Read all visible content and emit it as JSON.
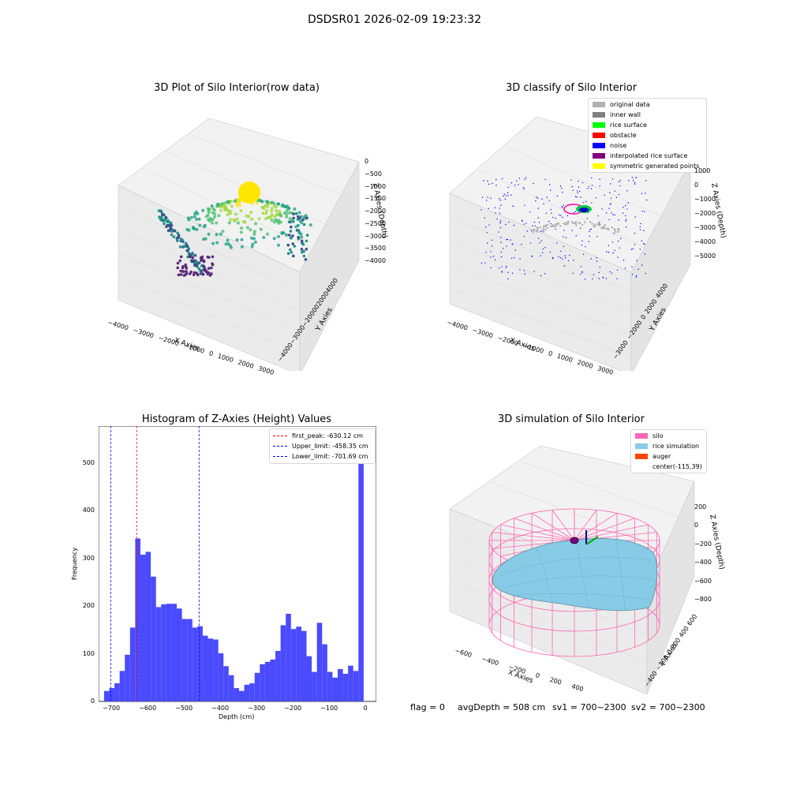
{
  "suptitle": "DSDSR01 2026-02-09 19:23:32",
  "colors": {
    "hist_bar": "#4a4aff",
    "first_peak": "#ff0000",
    "limit": "#0000ff",
    "silo": "#ff66b2",
    "rice": "#87cbe6",
    "auger": "#ff4500",
    "noise": "#0000ff",
    "original": "#b0b0b0",
    "wall": "#808080",
    "rice_surface": "#00ff00",
    "obstacle": "#ff0000",
    "interp": "#800080",
    "sym": "#ffff00"
  },
  "panels": {
    "raw": {
      "title": "3D Plot of Silo Interior(row data)",
      "xlabel": "X Axies",
      "ylabel": "Y Axies",
      "zlabel": "Z Axies (Depth)",
      "xticks": [
        "−4000",
        "−3000",
        "−2000",
        "−1000",
        "0",
        "1000",
        "2000",
        "3000"
      ],
      "yticks": [
        "−4000",
        "−3000",
        "−2000",
        "−1000",
        "0",
        "1000",
        "2000",
        "3000",
        "4000"
      ],
      "zticks": [
        "0",
        "−500",
        "−1000",
        "−1500",
        "−2000",
        "−2500",
        "−3000",
        "−3500",
        "−4000"
      ]
    },
    "classify": {
      "title": "3D classify of Silo Interior",
      "xlabel": "X Axies",
      "ylabel": "Y Axies",
      "zlabel": "Z Axies (Depth)",
      "xticks": [
        "−4000",
        "−3000",
        "−2000",
        "−1000",
        "0",
        "1000",
        "2000",
        "3000"
      ],
      "yticks": [
        "−3000",
        "−2000",
        "−1000",
        "0",
        "1000",
        "2000",
        "3000",
        "4000"
      ],
      "zticks": [
        "1000",
        "0",
        "−1000",
        "−2000",
        "−3000",
        "−4000",
        "−5000"
      ],
      "legend": [
        {
          "label": "original data",
          "color": "#b0b0b0"
        },
        {
          "label": "inner wall",
          "color": "#808080"
        },
        {
          "label": "rice surface",
          "color": "#00ff00"
        },
        {
          "label": "obstacle",
          "color": "#ff0000"
        },
        {
          "label": "noise",
          "color": "#0000ff"
        },
        {
          "label": "interpolated rice surface",
          "color": "#800080"
        },
        {
          "label": "symmetric generated points",
          "color": "#ffff00"
        }
      ]
    },
    "simulation": {
      "title": "3D simulation of Silo Interior",
      "xlabel": "X Axies",
      "ylabel": "Y Axies",
      "zlabel": "Z Axies (Depth)",
      "xticks": [
        "−600",
        "−400",
        "−200",
        "0",
        "200",
        "400"
      ],
      "yticks": [
        "−400",
        "−200",
        "0",
        "200",
        "400",
        "600"
      ],
      "zticks": [
        "200",
        "0",
        "−200",
        "−400",
        "−600",
        "−800"
      ],
      "legend": [
        {
          "label": "silo",
          "color": "#ff66b2"
        },
        {
          "label": "rice simulation",
          "color": "#87cbe6"
        },
        {
          "label": "auger",
          "color": "#ff4500"
        },
        {
          "label": "center(-115,39)",
          "color": ""
        }
      ]
    }
  },
  "footer": {
    "flag": "flag = 0",
    "avg": "avgDepth = 508 cm",
    "sv1": "sv1 = 700~2300",
    "sv2": "sv2 = 700~2300"
  },
  "chart_data": {
    "type": "bar",
    "title": "Histogram of Z-Axies (Height) Values",
    "xlabel": "Depth (cm)",
    "ylabel": "Frequency",
    "xlim": [
      -735,
      30
    ],
    "ylim": [
      0,
      578
    ],
    "xticks": [
      -700,
      -600,
      -500,
      -400,
      -300,
      -200,
      -100,
      0
    ],
    "xtick_labels": [
      "−700",
      "−600",
      "−500",
      "−400",
      "−300",
      "−200",
      "−100",
      "0"
    ],
    "yticks": [
      0,
      100,
      200,
      300,
      400,
      500
    ],
    "bin_width": 14.3,
    "bin_left": [
      -720,
      -705.7,
      -691.4,
      -677.1,
      -662.8,
      -648.5,
      -634.2,
      -619.9,
      -605.6,
      -591.3,
      -577,
      -562.7,
      -548.4,
      -534.1,
      -519.8,
      -505.5,
      -491.2,
      -476.9,
      -462.6,
      -448.3,
      -434,
      -419.7,
      -405.4,
      -391.1,
      -376.8,
      -362.5,
      -348.2,
      -333.9,
      -319.6,
      -305.3,
      -291,
      -276.7,
      -262.4,
      -248.1,
      -233.8,
      -219.5,
      -205.2,
      -190.9,
      -176.6,
      -162.3,
      -148,
      -133.7,
      -119.4,
      -105.1,
      -90.8,
      -76.5,
      -62.2,
      -47.9,
      -33.6,
      -19.3
    ],
    "values": [
      22,
      28,
      38,
      64,
      98,
      155,
      342,
      308,
      314,
      262,
      198,
      204,
      205,
      205,
      195,
      173,
      173,
      155,
      158,
      138,
      132,
      130,
      101,
      74,
      55,
      28,
      22,
      35,
      38,
      60,
      78,
      83,
      88,
      106,
      160,
      184,
      152,
      157,
      148,
      95,
      62,
      165,
      120,
      62,
      50,
      68,
      58,
      75,
      64,
      545
    ],
    "lines": [
      {
        "label": "first_peak: -630.12 cm",
        "x": -630.12,
        "color": "#ff0000"
      },
      {
        "label": "Upper_limit: -458.35 cm",
        "x": -458.35,
        "color": "#0000ff"
      },
      {
        "label": "Lower_limit: -701.69 cm",
        "x": -701.69,
        "color": "#0000ff"
      }
    ]
  }
}
